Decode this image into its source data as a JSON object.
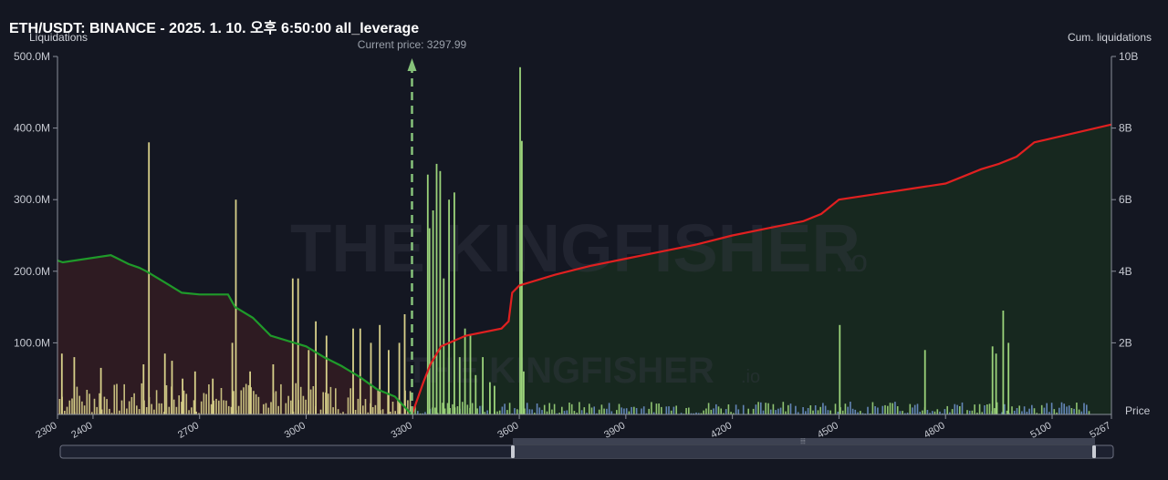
{
  "chart_data": {
    "type": "bar",
    "title": "ETH/USDT: BINANCE - 2025. 1. 10. 오후 6:50:00 all_leverage",
    "ylabel_left": "Liquidations",
    "ylabel_right": "Cum. liquidations",
    "xlabel": "Price",
    "current_price_label": "Current price: 3297.99",
    "current_price": 3297.99,
    "watermark": "THE KINGFISHER",
    "watermark_suffix": ".io",
    "xlim": [
      2300,
      5267
    ],
    "ylim_left": [
      0,
      500
    ],
    "ylim_right": [
      0,
      10
    ],
    "x_ticks": [
      "2300",
      "2400",
      "2700",
      "3000",
      "3300",
      "3600",
      "3900",
      "4200",
      "4500",
      "4800",
      "5100",
      "5267"
    ],
    "x_tick_values": [
      2300,
      2400,
      2700,
      3000,
      3300,
      3600,
      3900,
      4200,
      4500,
      4800,
      5100,
      5267
    ],
    "y_ticks_left": [
      "100.0M",
      "200.0M",
      "300.0M",
      "400.0M",
      "500.0M"
    ],
    "y_tick_values_left": [
      100,
      200,
      300,
      400,
      500
    ],
    "y_ticks_right": [
      "2B",
      "4B",
      "6B",
      "8B",
      "10B"
    ],
    "y_tick_values_right": [
      2,
      4,
      6,
      8,
      10
    ],
    "colors": {
      "short_bar": "#9bd37a",
      "long_bar": "#d8d08a",
      "blue_bar": "#6c8fc8",
      "long_cum_line": "#1f9a2a",
      "short_cum_line": "#e02020",
      "long_fill": "#2e1b22",
      "short_fill": "#17281f",
      "current_price": "#86c27a"
    },
    "long_cumulative": {
      "x": [
        2300,
        2315,
        2450,
        2500,
        2530,
        2550,
        2600,
        2650,
        2700,
        2780,
        2800,
        2850,
        2900,
        2950,
        3000,
        3050,
        3100,
        3150,
        3200,
        3250,
        3297
      ],
      "y": [
        4.3,
        4.25,
        4.45,
        4.2,
        4.1,
        4.0,
        3.7,
        3.4,
        3.35,
        3.35,
        3.0,
        2.7,
        2.2,
        2.05,
        1.9,
        1.6,
        1.35,
        1.05,
        0.7,
        0.5,
        0
      ]
    },
    "short_cumulative": {
      "x": [
        3298,
        3330,
        3350,
        3380,
        3450,
        3550,
        3570,
        3580,
        3600,
        3700,
        3800,
        3900,
        4000,
        4100,
        4200,
        4300,
        4400,
        4450,
        4500,
        4600,
        4700,
        4800,
        4850,
        4900,
        4950,
        5000,
        5050,
        5267
      ],
      "y": [
        0,
        0.9,
        1.4,
        1.9,
        2.2,
        2.4,
        2.6,
        3.4,
        3.6,
        3.9,
        4.15,
        4.35,
        4.55,
        4.75,
        5.0,
        5.2,
        5.4,
        5.6,
        6.0,
        6.15,
        6.3,
        6.45,
        6.65,
        6.85,
        7.0,
        7.2,
        7.6,
        8.1
      ]
    },
    "highlight_bars": {
      "x": [
        2310,
        2345,
        2420,
        2540,
        2555,
        2600,
        2620,
        2650,
        2685,
        2735,
        2790,
        2800,
        2840,
        2905,
        2960,
        2975,
        3005,
        3025,
        3055,
        3130,
        3150,
        3180,
        3205,
        3230,
        3260,
        3275,
        3340,
        3345,
        3355,
        3365,
        3375,
        3385,
        3400,
        3415,
        3430,
        3445,
        3460,
        3475,
        3495,
        3515,
        3528,
        3600,
        3605,
        3610,
        4500,
        4740,
        4930,
        4940,
        4960,
        4975
      ],
      "y": [
        85,
        80,
        65,
        70,
        380,
        85,
        75,
        50,
        60,
        50,
        100,
        300,
        60,
        70,
        190,
        190,
        90,
        130,
        110,
        120,
        120,
        100,
        125,
        90,
        100,
        140,
        335,
        260,
        285,
        350,
        340,
        190,
        300,
        310,
        80,
        120,
        110,
        55,
        80,
        45,
        40,
        485,
        382,
        60,
        125,
        90,
        95,
        85,
        145,
        100
      ]
    },
    "left_bar_fill_level_M": 40,
    "right_bar_fill_level_M": 20
  }
}
